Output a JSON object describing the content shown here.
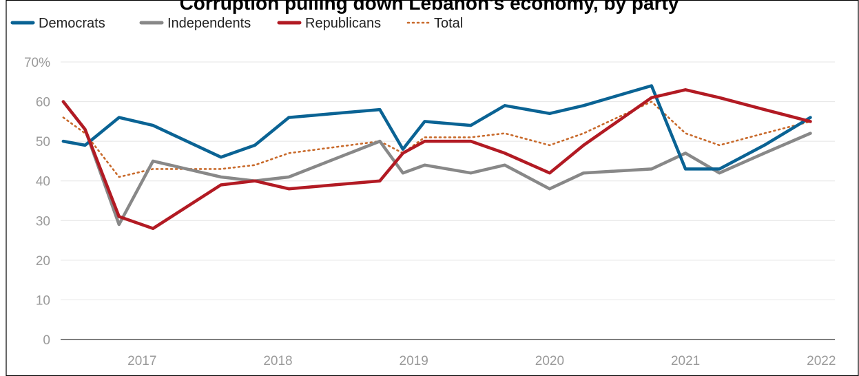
{
  "chart_data": {
    "type": "line",
    "title": "Corruption pulling down Lebanon's economy, by party",
    "xlabel": "",
    "ylabel": "",
    "ylim": [
      0,
      70
    ],
    "yticks": [
      "0",
      "10",
      "20",
      "30",
      "40",
      "50",
      "60",
      "70%"
    ],
    "yticks_values": [
      0,
      10,
      20,
      30,
      40,
      50,
      60,
      70
    ],
    "xlim": [
      2016.4,
      2022.1
    ],
    "xticks": [
      "2017",
      "2018",
      "2019",
      "2020",
      "2021",
      "2022"
    ],
    "xticks_values": [
      2017,
      2018,
      2019,
      2020,
      2021,
      2022
    ],
    "grid": true,
    "legend_position": "top-left",
    "series": [
      {
        "name": "Democrats",
        "color": "#0a6394",
        "style": "solid",
        "x": [
          2016.42,
          2016.58,
          2016.83,
          2017.08,
          2017.58,
          2017.83,
          2018.08,
          2018.75,
          2018.92,
          2019.08,
          2019.42,
          2019.67,
          2020.0,
          2020.25,
          2020.75,
          2021.0,
          2021.25,
          2021.58,
          2021.92
        ],
        "values": [
          50,
          49,
          56,
          54,
          46,
          49,
          56,
          58,
          48,
          55,
          54,
          59,
          57,
          59,
          64,
          43,
          43,
          49,
          56
        ]
      },
      {
        "name": "Independents",
        "color": "#888888",
        "style": "solid",
        "x": [
          2016.42,
          2016.58,
          2016.83,
          2017.08,
          2017.58,
          2017.83,
          2018.08,
          2018.75,
          2018.92,
          2019.08,
          2019.42,
          2019.67,
          2020.0,
          2020.25,
          2020.75,
          2021.0,
          2021.25,
          2021.58,
          2021.92
        ],
        "values": [
          60,
          53,
          29,
          45,
          41,
          40,
          41,
          50,
          42,
          44,
          42,
          44,
          38,
          42,
          43,
          47,
          42,
          47,
          52
        ]
      },
      {
        "name": "Republicans",
        "color": "#b21a23",
        "style": "solid",
        "x": [
          2016.42,
          2016.58,
          2016.83,
          2017.08,
          2017.58,
          2017.83,
          2018.08,
          2018.75,
          2018.92,
          2019.08,
          2019.42,
          2019.67,
          2020.0,
          2020.25,
          2020.75,
          2021.0,
          2021.25,
          2021.58,
          2021.92
        ],
        "values": [
          60,
          53,
          31,
          28,
          39,
          40,
          38,
          40,
          47,
          50,
          50,
          47,
          42,
          49,
          61,
          63,
          61,
          58,
          55
        ]
      },
      {
        "name": "Total",
        "color": "#c8692a",
        "style": "dotted",
        "x": [
          2016.42,
          2016.58,
          2016.83,
          2017.08,
          2017.58,
          2017.83,
          2018.08,
          2018.75,
          2018.92,
          2019.08,
          2019.42,
          2019.67,
          2020.0,
          2020.25,
          2020.75,
          2021.0,
          2021.25,
          2021.58,
          2021.92
        ],
        "values": [
          56,
          52,
          41,
          43,
          43,
          44,
          47,
          50,
          47,
          51,
          51,
          52,
          49,
          52,
          60,
          52,
          49,
          52,
          55
        ]
      }
    ]
  }
}
